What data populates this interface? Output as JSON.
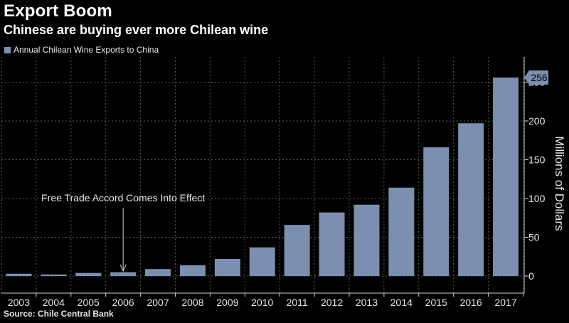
{
  "header": {
    "title": "Export Boom",
    "subtitle": "Chinese are buying ever more Chilean wine"
  },
  "footer": {
    "source": "Source: Chile Central Bank"
  },
  "colors": {
    "bar": "#7b8fb0",
    "background": "#000000",
    "grid": "#5a5a5a",
    "text": "#e6e6e6"
  },
  "chart_data": {
    "type": "bar",
    "categories": [
      "2003",
      "2004",
      "2005",
      "2006",
      "2007",
      "2008",
      "2009",
      "2010",
      "2011",
      "2012",
      "2013",
      "2014",
      "2015",
      "2016",
      "2017"
    ],
    "series": [
      {
        "name": "Annual Chilean Wine Exports to China",
        "values": [
          3,
          2,
          4,
          5,
          9,
          14,
          22,
          37,
          66,
          82,
          92,
          114,
          166,
          197,
          256
        ]
      }
    ],
    "ylabel": "Millions of Dollars",
    "ylim": [
      0,
      256
    ],
    "yticks": [
      0,
      50,
      100,
      150,
      200,
      250
    ],
    "y_axis_side": "right",
    "grid": true,
    "legend": "top-left",
    "last_value_badge": "256",
    "annotations": [
      {
        "text": "Free Trade Accord Comes Into Effect",
        "category": "2006"
      }
    ]
  }
}
